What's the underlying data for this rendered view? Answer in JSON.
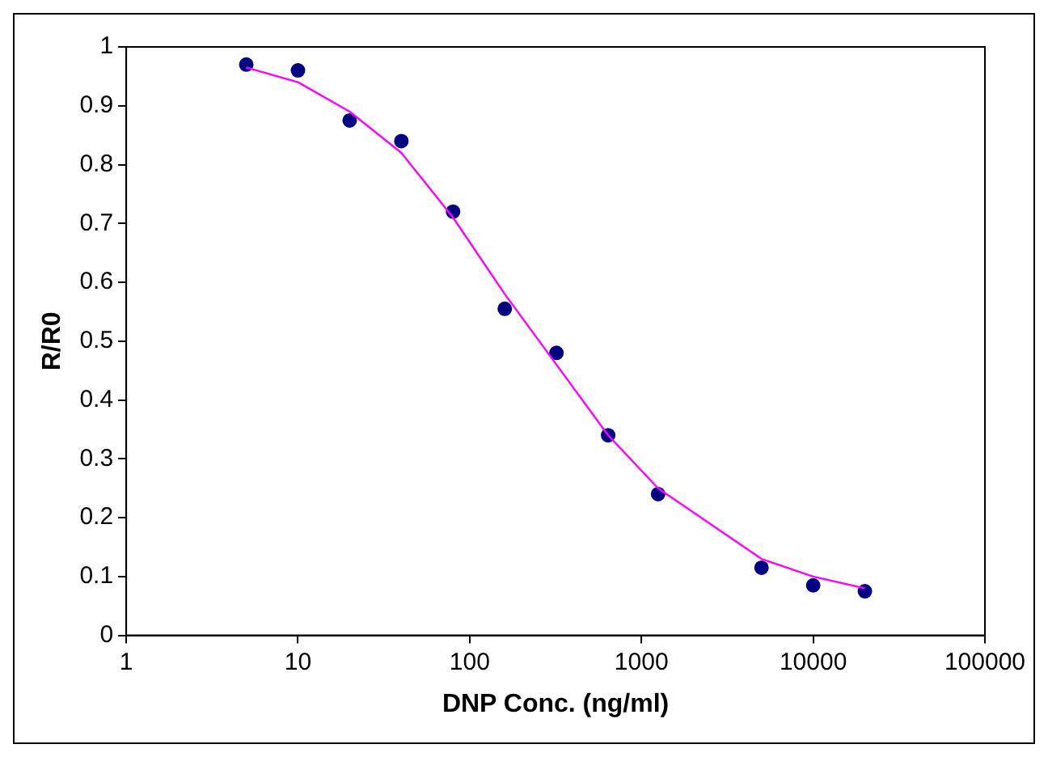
{
  "chart_data": {
    "type": "scatter",
    "xlabel": "DNP Conc. (ng/ml)",
    "ylabel": "R/R0",
    "log": "x",
    "grid": false,
    "legend": false,
    "xlim": [
      1,
      100000
    ],
    "xticks": [
      1,
      10,
      100,
      1000,
      10000,
      100000
    ],
    "ylim": [
      0,
      1
    ],
    "yticks": [
      0,
      0.1,
      0.2,
      0.3,
      0.4,
      0.5,
      0.6,
      0.7,
      0.8,
      0.9,
      1
    ],
    "series": [
      {
        "type": "line",
        "color": "#ff00ff",
        "marker": "none",
        "line_style": "solid",
        "x": [
          5,
          10,
          20,
          40,
          80,
          160,
          320,
          640,
          1250,
          5000,
          10000,
          20000
        ],
        "values": [
          0.965,
          0.94,
          0.89,
          0.82,
          0.71,
          0.58,
          0.46,
          0.34,
          0.25,
          0.13,
          0.1,
          0.08
        ]
      },
      {
        "type": "scatter",
        "color": "#000080",
        "marker": "circle",
        "x": [
          5,
          10,
          20,
          40,
          80,
          160,
          320,
          640,
          1250,
          5000,
          10000,
          20000
        ],
        "values": [
          0.97,
          0.96,
          0.875,
          0.84,
          0.72,
          0.555,
          0.48,
          0.34,
          0.24,
          0.115,
          0.085,
          0.075
        ]
      }
    ]
  }
}
